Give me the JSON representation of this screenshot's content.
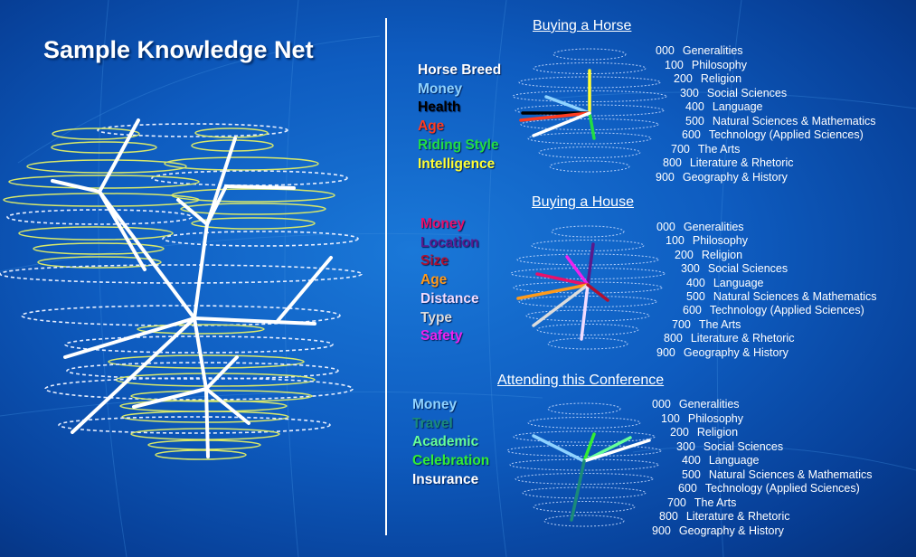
{
  "slide_title": "Sample Knowledge Net",
  "dewey_classes": [
    {
      "code": "000",
      "label": "Generalities"
    },
    {
      "code": "100",
      "label": "Philosophy"
    },
    {
      "code": "200",
      "label": "Religion"
    },
    {
      "code": "300",
      "label": "Social Sciences"
    },
    {
      "code": "400",
      "label": "Language"
    },
    {
      "code": "500",
      "label": "Natural Sciences & Mathematics"
    },
    {
      "code": "600",
      "label": "Technology (Applied Sciences)"
    },
    {
      "code": "700",
      "label": "The Arts"
    },
    {
      "code": "800",
      "label": "Literature & Rhetoric"
    },
    {
      "code": "900",
      "label": "Geography & History"
    }
  ],
  "sections": [
    {
      "title": "Buying a Horse",
      "factors": [
        {
          "label": "Horse Breed",
          "color": "#ffffff"
        },
        {
          "label": "Money",
          "color": "#8fd3ff"
        },
        {
          "label": "Health",
          "color": "#000000"
        },
        {
          "label": "Age",
          "color": "#ff3b1f"
        },
        {
          "label": "Riding Style",
          "color": "#22dd44"
        },
        {
          "label": "Intelligence",
          "color": "#ffff33"
        }
      ]
    },
    {
      "title": "Buying a House",
      "factors": [
        {
          "label": "Money",
          "color": "#e8106a"
        },
        {
          "label": "Location",
          "color": "#5a1a8c"
        },
        {
          "label": "Size",
          "color": "#b01030"
        },
        {
          "label": "Age",
          "color": "#ff9a1a"
        },
        {
          "label": "Distance",
          "color": "#f2dcff"
        },
        {
          "label": "Type",
          "color": "#dcdcdc"
        },
        {
          "label": "Safety",
          "color": "#ee22ee"
        }
      ]
    },
    {
      "title": "Attending this Conference",
      "factors": [
        {
          "label": "Money",
          "color": "#8fd3ff"
        },
        {
          "label": "Travel",
          "color": "#1a8a7a"
        },
        {
          "label": "Academic",
          "color": "#66ff99"
        },
        {
          "label": "Celebration",
          "color": "#33ee33"
        },
        {
          "label": "Insurance",
          "color": "#ffffff"
        }
      ]
    }
  ]
}
